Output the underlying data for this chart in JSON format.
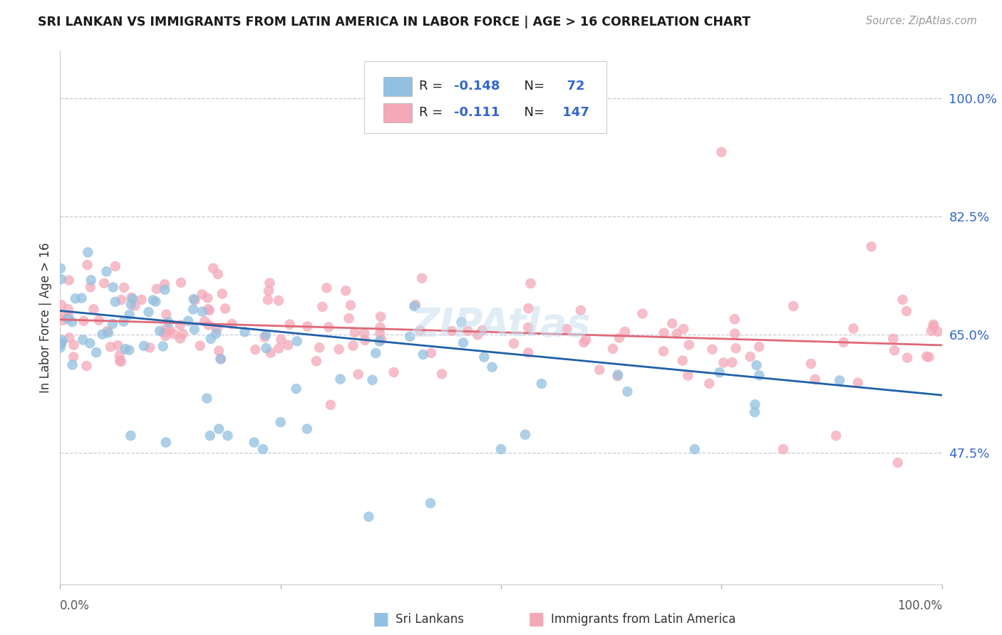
{
  "title": "SRI LANKAN VS IMMIGRANTS FROM LATIN AMERICA IN LABOR FORCE | AGE > 16 CORRELATION CHART",
  "source": "Source: ZipAtlas.com",
  "ylabel": "In Labor Force | Age > 16",
  "ytick_labels": [
    "100.0%",
    "82.5%",
    "65.0%",
    "47.5%"
  ],
  "ytick_values": [
    1.0,
    0.825,
    0.65,
    0.475
  ],
  "xlim": [
    0.0,
    1.0
  ],
  "ylim": [
    0.28,
    1.07
  ],
  "color_blue": "#92c0e0",
  "color_pink": "#f4a8b8",
  "line_color_blue": "#2060a8",
  "line_color_pink": "#e06878",
  "background_color": "#ffffff",
  "grid_color": "#c8c8d8",
  "sri_lankans_N": 72,
  "immigrants_N": 147,
  "sri_lankans_R": -0.148,
  "immigrants_R": -0.111,
  "sl_intercept": 0.685,
  "sl_slope": -0.125,
  "im_intercept": 0.672,
  "im_slope": -0.038
}
